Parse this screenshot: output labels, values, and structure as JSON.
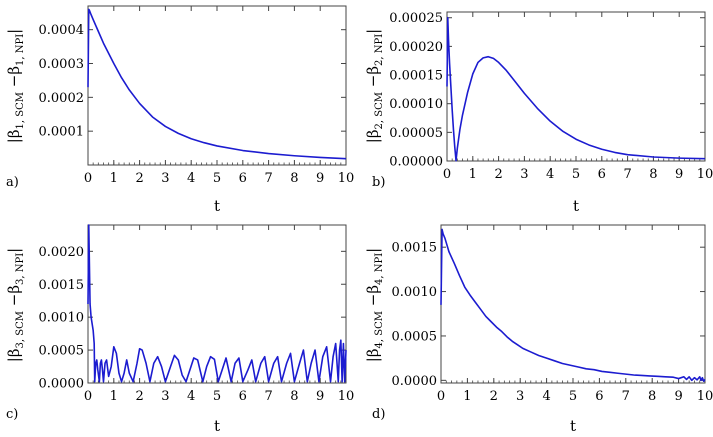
{
  "figure": {
    "line_color": "#1c1cd0",
    "frame_color": "#444444"
  },
  "chart_data": [
    {
      "type": "line",
      "panel_label": "a)",
      "xlabel": "t",
      "ylabel": "|β1, SCM − β1, NPI|",
      "ylabel_parts": {
        "sym": "β",
        "s1": "1, SCM",
        "s2": "1, NPI"
      },
      "xlim": [
        0,
        10
      ],
      "ylim": [
        0,
        0.00047
      ],
      "xticks": [
        0,
        1,
        2,
        3,
        4,
        5,
        6,
        7,
        8,
        9,
        10
      ],
      "yticks": [
        0.0001,
        0.0002,
        0.0003,
        0.0004
      ],
      "ytick_labels": [
        "0.0001",
        "0.0002",
        "0.0003",
        "0.0004"
      ],
      "series": [
        {
          "x": [
            0,
            0.03,
            0.05,
            0.1,
            0.2,
            0.4,
            0.6,
            0.8,
            1.0,
            1.3,
            1.6,
            2.0,
            2.5,
            3.0,
            3.5,
            4.0,
            4.5,
            5.0,
            6.0,
            7.0,
            8.0,
            9.0,
            10.0
          ],
          "y": [
            0.00023,
            0.00046,
            0.000458,
            0.000448,
            0.00043,
            0.000395,
            0.00036,
            0.00033,
            0.0003,
            0.000258,
            0.000222,
            0.000182,
            0.000142,
            0.000114,
            9.35e-05,
            7.77e-05,
            6.59e-05,
            5.64e-05,
            4.28e-05,
            3.38e-05,
            2.73e-05,
            2.25e-05,
            1.88e-05
          ]
        }
      ]
    },
    {
      "type": "line",
      "panel_label": "b)",
      "xlabel": "t",
      "ylabel": "|β2, SCM − β2, NPI|",
      "ylabel_parts": {
        "sym": "β",
        "s1": "2, SCM",
        "s2": "2, NPI"
      },
      "xlim": [
        0,
        10
      ],
      "ylim": [
        0,
        0.00026
      ],
      "xticks": [
        0,
        1,
        2,
        3,
        4,
        5,
        6,
        7,
        8,
        9,
        10
      ],
      "yticks": [
        0,
        5e-05,
        0.0001,
        0.00015,
        0.0002,
        0.00025
      ],
      "ytick_labels": [
        "0.00000",
        "0.00005",
        "0.00010",
        "0.00015",
        "0.00020",
        "0.00025"
      ],
      "series": [
        {
          "x": [
            0,
            0.03,
            0.06,
            0.1,
            0.15,
            0.2,
            0.25,
            0.3,
            0.35,
            0.4,
            0.5,
            0.6,
            0.8,
            1.0,
            1.2,
            1.4,
            1.6,
            1.8,
            2.0,
            2.3,
            2.6,
            3.0,
            3.5,
            4.0,
            4.5,
            5.0,
            5.5,
            6.0,
            6.5,
            7.0,
            8.0,
            9.0,
            10.0
          ],
          "y": [
            0.00013,
            0.00025,
            0.00021,
            0.00017,
            0.00013,
            9e-05,
            5.5e-05,
            2.5e-05,
            5e-07,
            2.2e-05,
            5.5e-05,
            8e-05,
            0.00012,
            0.000152,
            0.000172,
            0.00018,
            0.000182,
            0.000179,
            0.000172,
            0.000158,
            0.000141,
            0.000118,
            9.2e-05,
            6.95e-05,
            5.15e-05,
            3.8e-05,
            2.8e-05,
            2.05e-05,
            1.5e-05,
            1.1e-05,
            7e-06,
            5e-06,
            4e-06
          ]
        }
      ]
    },
    {
      "type": "line",
      "panel_label": "c)",
      "xlabel": "t",
      "ylabel": "|β3, SCM − β3, NPI|",
      "ylabel_parts": {
        "sym": "β",
        "s1": "3, SCM",
        "s2": "3, NPI"
      },
      "xlim": [
        0,
        10
      ],
      "ylim": [
        0,
        0.0024
      ],
      "xticks": [
        0,
        1,
        2,
        3,
        4,
        5,
        6,
        7,
        8,
        9,
        10
      ],
      "yticks": [
        0,
        0.0005,
        0.001,
        0.0015,
        0.002
      ],
      "ytick_labels": [
        "0.0000",
        "0.0005",
        "0.0010",
        "0.0015",
        "0.0020"
      ],
      "series": [
        {
          "x": [
            0,
            0.03,
            0.08,
            0.12,
            0.16,
            0.2,
            0.24,
            0.26,
            0.3,
            0.34,
            0.38,
            0.44,
            0.48,
            0.52,
            0.56,
            0.6,
            0.66,
            0.72,
            0.8,
            0.9,
            1.0,
            1.1,
            1.2,
            1.3,
            1.4,
            1.5,
            1.6,
            1.75,
            1.9,
            2.0,
            2.1,
            2.25,
            2.4,
            2.55,
            2.7,
            2.85,
            3.0,
            3.2,
            3.35,
            3.5,
            3.65,
            3.8,
            3.95,
            4.1,
            4.25,
            4.45,
            4.6,
            4.75,
            4.9,
            5.05,
            5.2,
            5.35,
            5.55,
            5.7,
            5.85,
            6.0,
            6.2,
            6.35,
            6.5,
            6.7,
            6.85,
            7.0,
            7.2,
            7.35,
            7.5,
            7.7,
            7.85,
            8.0,
            8.2,
            8.35,
            8.5,
            8.65,
            8.8,
            8.95,
            9.1,
            9.25,
            9.4,
            9.5,
            9.6,
            9.7,
            9.75,
            9.8,
            9.85,
            9.9,
            9.95,
            10.0
          ],
          "y": [
            0.0012,
            0.0024,
            0.0012,
            0.001,
            0.0009,
            0.0008,
            0.0006,
            2e-05,
            0.0003,
            0.00035,
            0.0002,
            2e-05,
            0.0003,
            0.00035,
            0.0002,
            2e-05,
            0.0003,
            0.00035,
            0.0001,
            0.00025,
            0.00055,
            0.00045,
            0.00015,
            2e-05,
            0.00015,
            0.00035,
            0.00015,
            2e-05,
            0.0003,
            0.00052,
            0.0005,
            0.0003,
            2e-05,
            0.0003,
            0.0004,
            0.00025,
            2e-05,
            0.00025,
            0.00042,
            0.00035,
            0.00012,
            2e-05,
            0.0002,
            0.00038,
            0.00035,
            2e-05,
            0.00025,
            0.0004,
            0.00036,
            2e-05,
            0.0002,
            0.00038,
            2e-05,
            0.0003,
            0.00038,
            2e-05,
            0.0002,
            0.00035,
            2e-05,
            0.0003,
            0.0004,
            2e-05,
            0.0003,
            0.0004,
            2e-05,
            0.0003,
            0.00045,
            2e-05,
            0.0003,
            0.0005,
            2e-05,
            0.0003,
            0.0005,
            2e-05,
            0.0004,
            0.00055,
            2e-05,
            0.0004,
            0.0006,
            2e-05,
            0.0005,
            0.00065,
            2e-05,
            0.0006,
            2e-05,
            0.0005
          ]
        }
      ]
    },
    {
      "type": "line",
      "panel_label": "d)",
      "xlabel": "t",
      "ylabel": "|β4, SCM − β4, NPI|",
      "ylabel_parts": {
        "sym": "β",
        "s1": "4, SCM",
        "s2": "4, NPI"
      },
      "xlim": [
        0,
        10
      ],
      "ylim": [
        -3e-05,
        0.00175
      ],
      "xticks": [
        0,
        1,
        2,
        3,
        4,
        5,
        6,
        7,
        8,
        9,
        10
      ],
      "yticks": [
        0,
        0.0005,
        0.001,
        0.0015
      ],
      "ytick_labels": [
        "0.0000",
        "0.0005",
        "0.0010",
        "0.0015"
      ],
      "series": [
        {
          "x": [
            0,
            0.04,
            0.08,
            0.15,
            0.3,
            0.5,
            0.7,
            0.9,
            1.1,
            1.3,
            1.5,
            1.7,
            1.9,
            2.1,
            2.3,
            2.5,
            2.7,
            2.9,
            3.1,
            3.4,
            3.7,
            4.0,
            4.3,
            4.6,
            4.9,
            5.2,
            5.5,
            5.8,
            6.1,
            6.4,
            6.7,
            7.0,
            7.3,
            7.6,
            7.9,
            8.2,
            8.5,
            8.8,
            9.0,
            9.2,
            9.3,
            9.4,
            9.5,
            9.6,
            9.7,
            9.8,
            9.85,
            9.9,
            9.95,
            10.0
          ],
          "y": [
            0.00085,
            0.0017,
            0.00165,
            0.0016,
            0.00145,
            0.00132,
            0.00118,
            0.00105,
            0.00096,
            0.00088,
            0.0008,
            0.00072,
            0.00066,
            0.0006,
            0.00055,
            0.00049,
            0.00044,
            0.0004,
            0.00036,
            0.00032,
            0.00028,
            0.00025,
            0.00022,
            0.00019,
            0.00017,
            0.00015,
            0.00013,
            0.00012,
            0.0001,
            9e-05,
            8e-05,
            7e-05,
            6e-05,
            5.5e-05,
            5e-05,
            4.5e-05,
            4e-05,
            3.5e-05,
            2e-05,
            4e-05,
            1e-05,
            4e-05,
            0.0,
            3e-05,
            5e-06,
            4e-05,
            0.0,
            3e-05,
            -1e-05,
            1e-05
          ]
        }
      ]
    }
  ]
}
